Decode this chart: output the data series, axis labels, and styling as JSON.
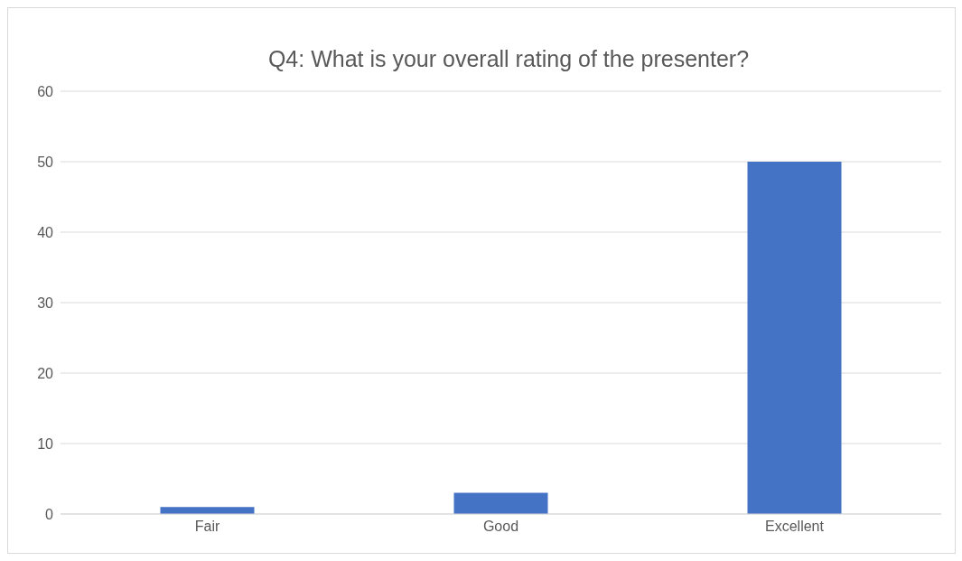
{
  "chart_data": {
    "type": "bar",
    "title": "Q4: What is your overall rating of the presenter?",
    "categories": [
      "Fair",
      "Good",
      "Excellent"
    ],
    "values": [
      1,
      3,
      50
    ],
    "color": "#4472c4",
    "ylim": [
      0,
      60
    ],
    "yticks": [
      0,
      10,
      20,
      30,
      40,
      50,
      60
    ],
    "grid": "y",
    "legend": false
  }
}
